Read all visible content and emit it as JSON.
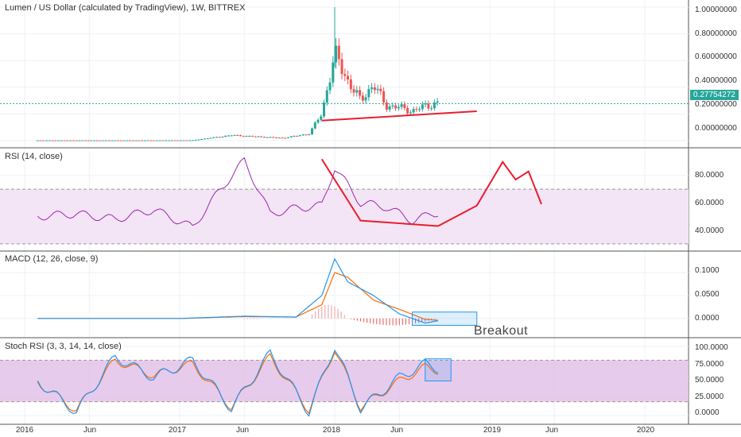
{
  "panes": {
    "price": {
      "title": "Lumen / US Dollar (calculated by TradingView), 1W, BITTREX",
      "ticks": [
        "1.00000000",
        "0.80000000",
        "0.60000000",
        "0.40000000",
        "0.20000000",
        "0.00000000"
      ],
      "last_price": "0.27754272"
    },
    "rsi": {
      "title": "RSI (14, close)",
      "ticks": [
        "80.0000",
        "60.0000",
        "40.0000"
      ]
    },
    "macd": {
      "title": "MACD (12, 26, close, 9)",
      "ticks": [
        "0.1000",
        "0.0500",
        "0.0000"
      ]
    },
    "stoch": {
      "title": "Stoch RSI (3, 3, 14, 14, close)",
      "ticks": [
        "100.0000",
        "75.0000",
        "50.0000",
        "25.0000",
        "0.0000"
      ]
    }
  },
  "x_axis": {
    "labels": [
      "2016",
      "Jun",
      "2017",
      "Jun",
      "2018",
      "Jun",
      "2019",
      "Jun",
      "2020"
    ]
  },
  "annotation": {
    "text": "Breakout"
  },
  "colors": {
    "up": "#26a69a",
    "down": "#ef5350",
    "rsi": "#9c27b0",
    "macd": "#2196f3",
    "signal": "#ff6d00",
    "drawing": "#e91e2c",
    "band": "#e1bee7"
  },
  "chart_data": [
    {
      "type": "candlestick",
      "title": "Lumen / US Dollar (calculated by TradingView), 1W, BITTREX",
      "ylim": [
        -0.03,
        1.03
      ],
      "x": [
        "2016-02",
        "2016-06",
        "2016-10",
        "2017-02",
        "2017-05",
        "2017-07",
        "2017-09",
        "2017-11",
        "2017-12",
        "2018-01",
        "2018-02",
        "2018-03",
        "2018-04",
        "2018-05",
        "2018-06",
        "2018-07",
        "2018-08",
        "2018-09"
      ],
      "close": [
        0.002,
        0.002,
        0.002,
        0.003,
        0.04,
        0.03,
        0.02,
        0.05,
        0.2,
        0.65,
        0.45,
        0.3,
        0.42,
        0.26,
        0.25,
        0.22,
        0.26,
        0.28
      ],
      "last_price": 0.27754272
    },
    {
      "type": "line",
      "title": "RSI (14, close)",
      "ylim": [
        27,
        98
      ],
      "x": [
        "2016-02",
        "2016-05",
        "2016-08",
        "2016-11",
        "2017-02",
        "2017-04",
        "2017-06",
        "2017-08",
        "2017-10",
        "2017-12",
        "2018-01",
        "2018-03",
        "2018-05",
        "2018-07",
        "2018-09"
      ],
      "series": [
        {
          "values": [
            50,
            52,
            48,
            55,
            42,
            68,
            91,
            52,
            56,
            58,
            86,
            60,
            57,
            47,
            53
          ]
        }
      ],
      "bands": [
        30,
        70
      ]
    },
    {
      "type": "line",
      "title": "MACD (12, 26, close, 9)",
      "ylim": [
        -0.035,
        0.14
      ],
      "x": [
        "2016-02",
        "2017-01",
        "2017-06",
        "2017-10",
        "2017-12",
        "2018-01",
        "2018-02",
        "2018-04",
        "2018-06",
        "2018-08",
        "2018-09"
      ],
      "series": [
        {
          "values": [
            0,
            0,
            0.005,
            0.003,
            0.05,
            0.13,
            0.08,
            0.05,
            0.01,
            -0.01,
            -0.005
          ]
        },
        {
          "values": [
            0,
            0,
            0.004,
            0.003,
            0.03,
            0.1,
            0.09,
            0.04,
            0.02,
            -0.002,
            -0.004
          ]
        }
      ]
    },
    {
      "type": "line",
      "title": "Stoch RSI (3, 3, 14, 14, close)",
      "ylim": [
        -8,
        108
      ],
      "x": [
        "2016-02",
        "2016-05",
        "2016-08",
        "2016-11",
        "2017-02",
        "2017-05",
        "2017-08",
        "2017-11",
        "2018-01",
        "2018-03",
        "2018-06",
        "2018-08",
        "2018-09"
      ],
      "series": [
        {
          "values": [
            50,
            5,
            85,
            55,
            80,
            10,
            90,
            5,
            100,
            10,
            55,
            75,
            68
          ]
        },
        {
          "values": [
            48,
            8,
            80,
            58,
            75,
            12,
            85,
            8,
            96,
            12,
            50,
            70,
            65
          ]
        }
      ],
      "bands": [
        20,
        80
      ]
    }
  ]
}
